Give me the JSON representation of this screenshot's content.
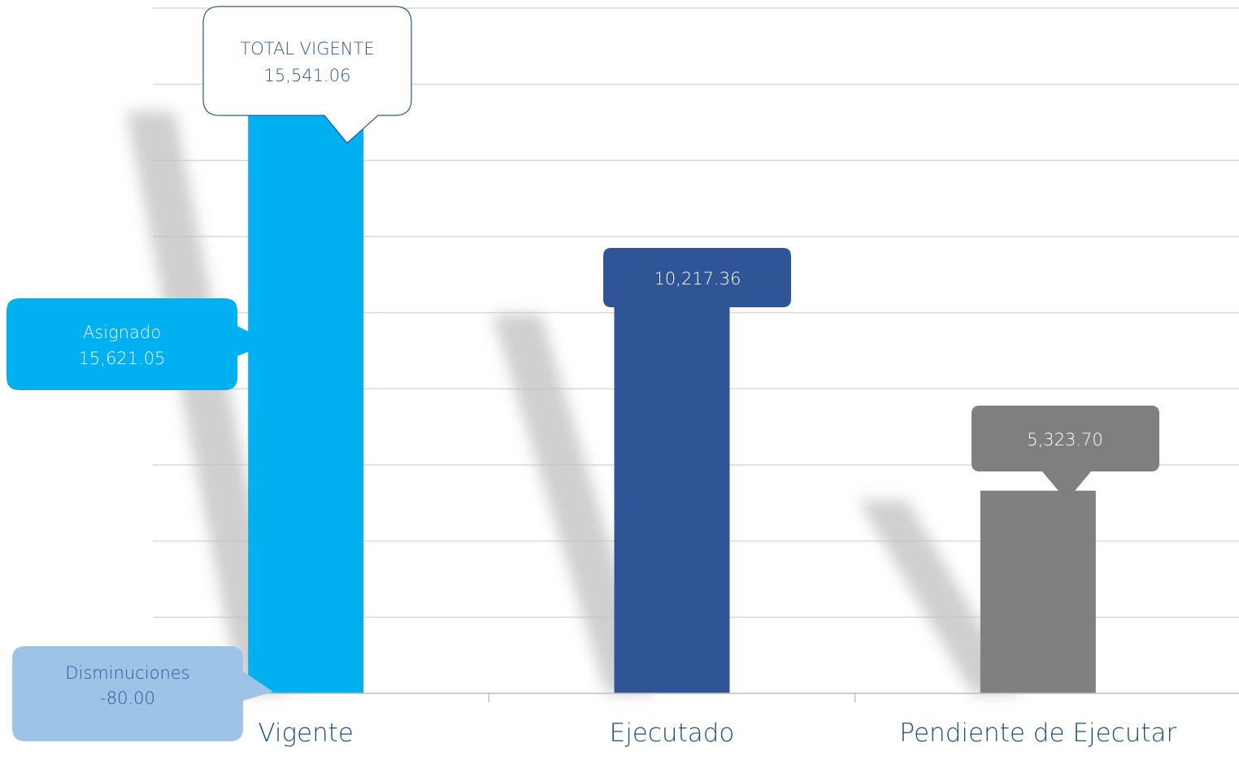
{
  "chart_data": {
    "type": "bar",
    "categories": [
      "Vigente",
      "Ejecutado",
      "Pendiente de Ejecutar"
    ],
    "values": [
      15541.06,
      10217.36,
      5323.7
    ],
    "ylim": [
      0,
      18000
    ],
    "grid": true,
    "bar_colors": [
      "#00B0F0",
      "#2F5597",
      "#808080"
    ],
    "data_labels": [
      "15,541.06",
      "10,217.36",
      "5,323.70"
    ],
    "annotations": {
      "total": {
        "title": "TOTAL VIGENTE",
        "value": "15,541.06",
        "color": "#2F5597"
      },
      "asignado": {
        "title": "Asignado",
        "value": "15,621.05",
        "fill": "#00B0F0",
        "text_color": "#FFFFFF"
      },
      "disminuciones": {
        "title": "Disminuciones",
        "value": "-80.00",
        "fill": "#9DC3E6",
        "text_color": "#2F5597"
      }
    }
  },
  "colors": {
    "gridline": "#D9D9D9",
    "axis": "#BFBFBF",
    "category_text": "#1F4E79",
    "shadow": "#BFBFBF"
  }
}
